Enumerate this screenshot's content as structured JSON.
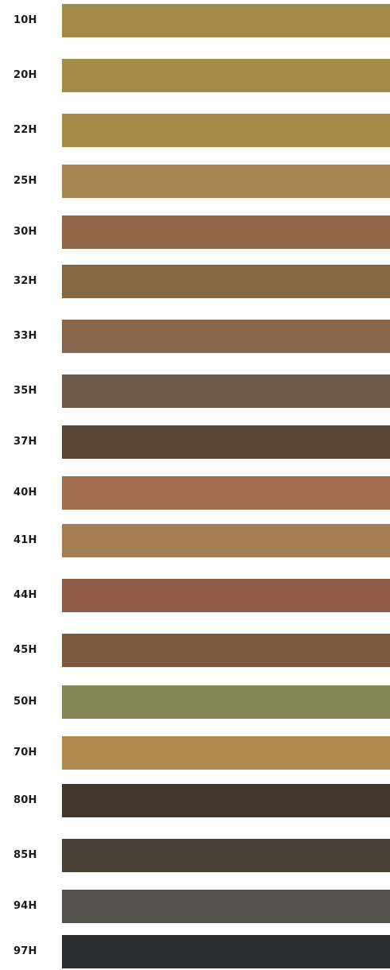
{
  "swatches": [
    {
      "label": "10H",
      "color": "#a38a4b"
    },
    {
      "label": "20H",
      "color": "#a58b4a"
    },
    {
      "label": "22H",
      "color": "#a58946"
    },
    {
      "label": "25H",
      "color": "#a58451"
    },
    {
      "label": "30H",
      "color": "#93684a"
    },
    {
      "label": "32H",
      "color": "#836941"
    },
    {
      "label": "33H",
      "color": "#88664e"
    },
    {
      "label": "35H",
      "color": "#705846"
    },
    {
      "label": "37H",
      "color": "#584632"
    },
    {
      "label": "40H",
      "color": "#a26b51"
    },
    {
      "label": "41H",
      "color": "#a67e56"
    },
    {
      "label": "44H",
      "color": "#8e5c47"
    },
    {
      "label": "45H",
      "color": "#7b5a3e"
    },
    {
      "label": "50H",
      "color": "#848659"
    },
    {
      "label": "70H",
      "color": "#b0884d"
    },
    {
      "label": "80H",
      "color": "#41372d"
    },
    {
      "label": "85H",
      "color": "#4a4137"
    },
    {
      "label": "94H",
      "color": "#52524a"
    },
    {
      "label": "97H",
      "color": "#2b2c2e"
    }
  ]
}
